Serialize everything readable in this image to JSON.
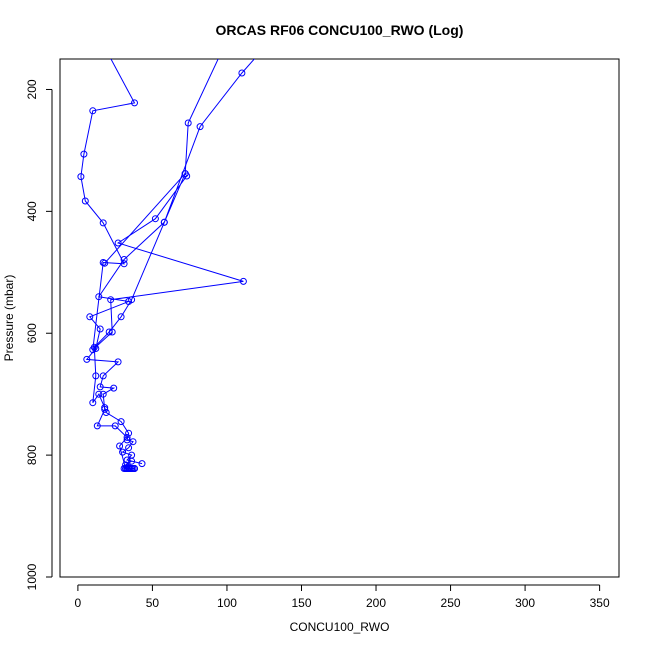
{
  "chart_data": {
    "type": "line",
    "title": "ORCAS RF06 CONCU100_RWO (Log)",
    "xlabel": "CONCU100_RWO",
    "ylabel": "Pressure (mbar)",
    "xlim": [
      -12,
      363
    ],
    "ylim": [
      1000,
      150
    ],
    "y_reversed": true,
    "xticks": [
      0,
      50,
      100,
      150,
      200,
      250,
      300,
      350
    ],
    "yticks": [
      200,
      400,
      600,
      800,
      1000
    ],
    "grid": false,
    "series_color": "#0000ff",
    "series": [
      {
        "points": [
          [
            122,
            140
          ],
          [
            110,
            173
          ],
          [
            82,
            261
          ],
          [
            58,
            418
          ],
          [
            36,
            545
          ],
          [
            29,
            573
          ],
          [
            21,
            598
          ],
          [
            11,
            623
          ],
          [
            12,
            670
          ],
          [
            10,
            714
          ],
          [
            14,
            700
          ],
          [
            18,
            722
          ],
          [
            19,
            730
          ],
          [
            29,
            745
          ],
          [
            34,
            764
          ],
          [
            33,
            775
          ],
          [
            37,
            778
          ],
          [
            34,
            788
          ],
          [
            30,
            795
          ],
          [
            36,
            800
          ],
          [
            33,
            808
          ],
          [
            43,
            814
          ],
          [
            36,
            810
          ],
          [
            32,
            816
          ],
          [
            34,
            820
          ],
          [
            35,
            822
          ],
          [
            38,
            822
          ],
          [
            34,
            822
          ],
          [
            32,
            822
          ],
          [
            35,
            822
          ],
          [
            36,
            822
          ],
          [
            33,
            822
          ],
          [
            37,
            822
          ],
          [
            31,
            822
          ],
          [
            36,
            822
          ],
          [
            34,
            822
          ],
          [
            33,
            822
          ],
          [
            38,
            822
          ],
          [
            35,
            822
          ],
          [
            32,
            822
          ],
          [
            28,
            785
          ],
          [
            33,
            771
          ],
          [
            25,
            752
          ],
          [
            13,
            752
          ],
          [
            18,
            725
          ],
          [
            17,
            700
          ],
          [
            24,
            690
          ],
          [
            15,
            688
          ],
          [
            17,
            670
          ],
          [
            27,
            647
          ],
          [
            6,
            643
          ],
          [
            12,
            625
          ],
          [
            15,
            593
          ],
          [
            8,
            573
          ],
          [
            34,
            548
          ],
          [
            14,
            540
          ],
          [
            31,
            479
          ],
          [
            58,
            418
          ],
          [
            72,
            338
          ],
          [
            73,
            342
          ],
          [
            52,
            412
          ],
          [
            27,
            452
          ],
          [
            111,
            515
          ],
          [
            22,
            545
          ],
          [
            23,
            598
          ],
          [
            10,
            627
          ],
          [
            17,
            484
          ],
          [
            31,
            486
          ],
          [
            17,
            419
          ],
          [
            5,
            383
          ],
          [
            2,
            343
          ],
          [
            4,
            306
          ],
          [
            10,
            235
          ],
          [
            38,
            222
          ],
          [
            20,
            140
          ]
        ]
      },
      {
        "points": [
          [
            96,
            140
          ],
          [
            74,
            255
          ],
          [
            72,
            338
          ],
          [
            18,
            485
          ]
        ]
      }
    ]
  }
}
